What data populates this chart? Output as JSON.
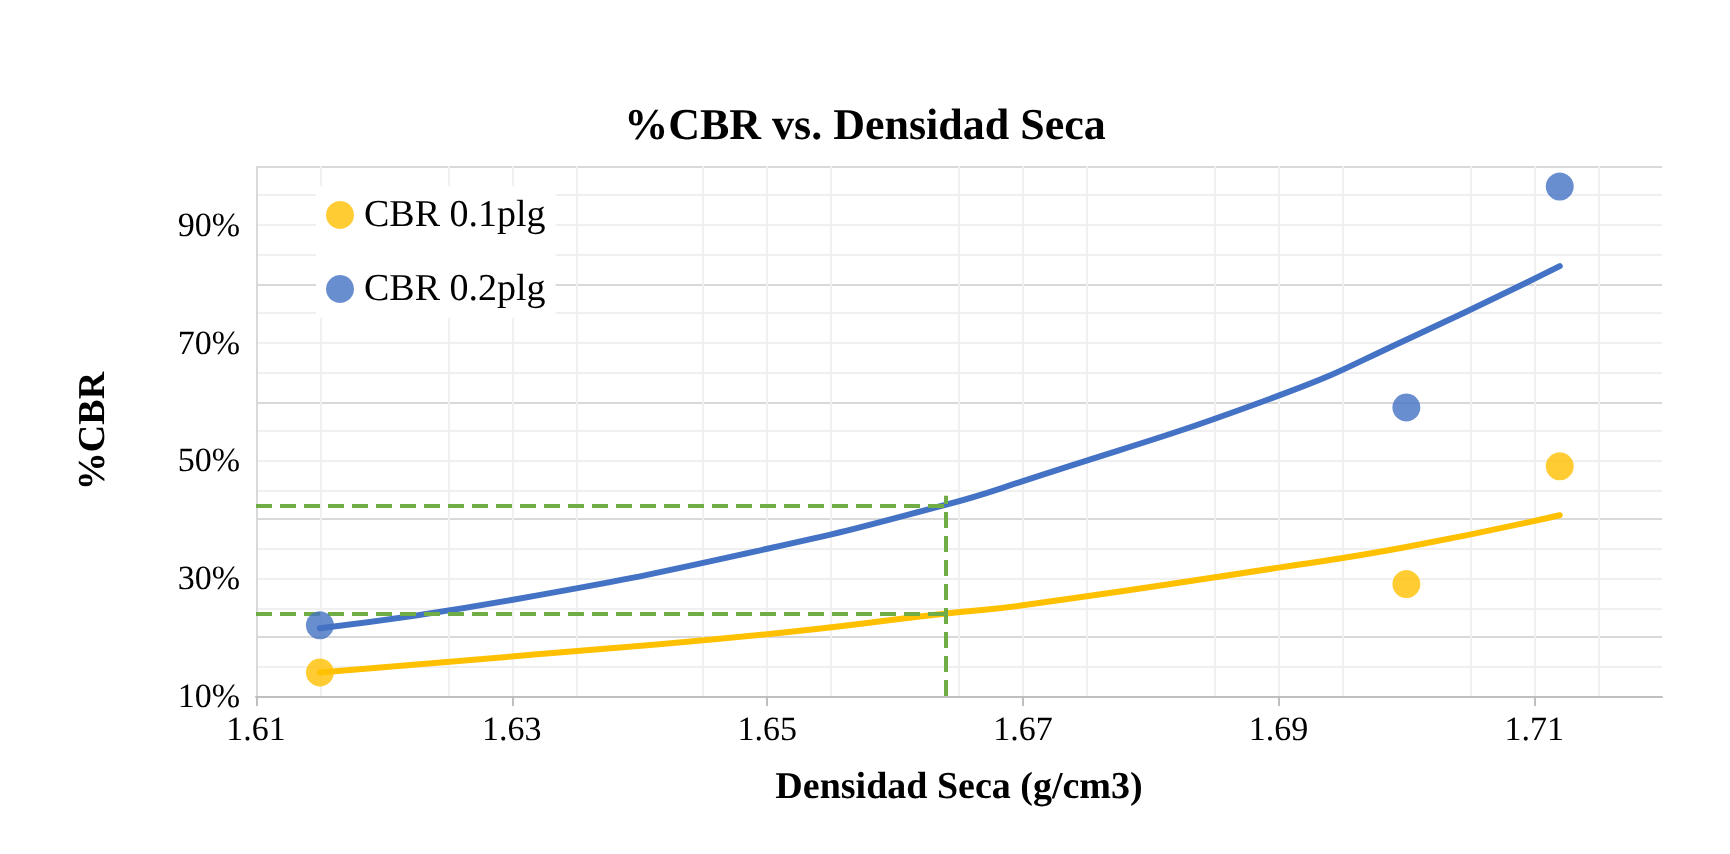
{
  "chart_data": {
    "type": "scatter",
    "title": "%CBR vs. Densidad Seca",
    "xlabel": "Densidad Seca (g/cm3)",
    "ylabel": "%CBR",
    "xlim": [
      1.61,
      1.72
    ],
    "xticks": [
      1.61,
      1.63,
      1.65,
      1.67,
      1.69,
      1.71
    ],
    "ylim": [
      10,
      100
    ],
    "yticks": [
      {
        "value": 10,
        "label": "10%"
      },
      {
        "value": 30,
        "label": "30%"
      },
      {
        "value": 50,
        "label": "50%"
      },
      {
        "value": 70,
        "label": "70%"
      },
      {
        "value": 90,
        "label": "90%"
      }
    ],
    "grid": true,
    "legend": "top left",
    "marker": "circle",
    "series": [
      {
        "name": "CBR 0.1plg",
        "color": "#ffc000",
        "x": [
          1.615,
          1.7,
          1.712
        ],
        "values": [
          14,
          29,
          49
        ]
      },
      {
        "name": "CBR 0.2plg",
        "color": "#4472c4",
        "x": [
          1.615,
          1.7,
          1.712
        ],
        "values": [
          22,
          59,
          96.5
        ]
      },
      {
        "type": "line",
        "color": "#ffc000",
        "marker": "none",
        "x": [
          1.615,
          1.63,
          1.65,
          1.664,
          1.67,
          1.69,
          1.7,
          1.712
        ],
        "values": [
          14,
          16.7,
          20.5,
          24,
          25.4,
          31.8,
          35.3,
          40.7
        ]
      },
      {
        "type": "line",
        "color": "#4472c4",
        "marker": "none",
        "x": [
          1.615,
          1.63,
          1.65,
          1.664,
          1.67,
          1.69,
          1.7,
          1.712
        ],
        "values": [
          21.5,
          26.3,
          35,
          42.5,
          46.5,
          61,
          70.5,
          83
        ]
      }
    ],
    "ref_lines": [
      {
        "axis": "y",
        "value": 42.5,
        "color": "#70ad47",
        "line_style": "dashed"
      },
      {
        "axis": "y",
        "value": 24,
        "color": "#70ad47",
        "line_style": "dashed"
      },
      {
        "axis": "x",
        "value": 1.664,
        "color": "#70ad47",
        "line_style": "dashed"
      }
    ]
  }
}
